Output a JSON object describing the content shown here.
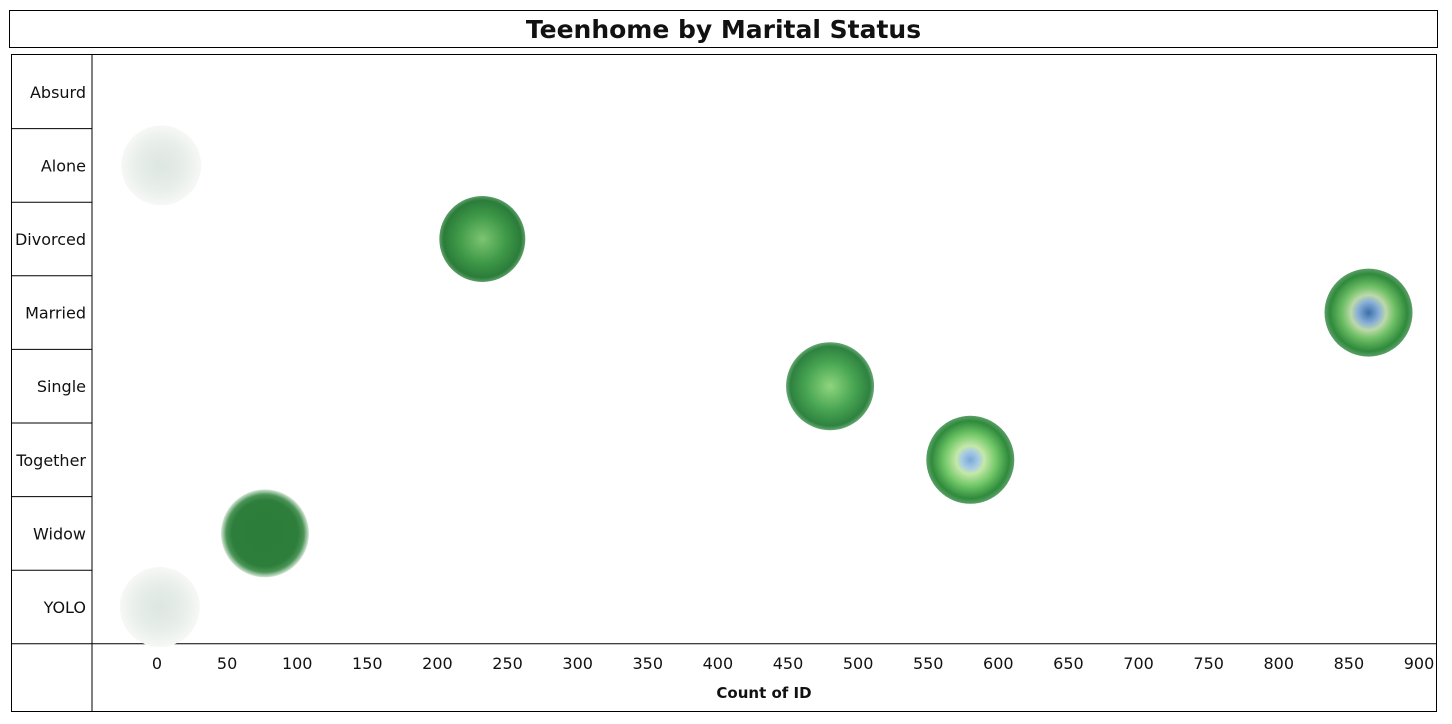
{
  "title": "Teenhome by Marital Status",
  "chart_data": {
    "type": "scatter",
    "title": "Teenhome by Marital Status",
    "xlabel": "Count of ID",
    "ylabel": "",
    "xlim": [
      -20,
      900
    ],
    "xticks": [
      0,
      50,
      100,
      150,
      200,
      250,
      300,
      350,
      400,
      450,
      500,
      550,
      600,
      650,
      700,
      750,
      800,
      850,
      900
    ],
    "categories": [
      "Absurd",
      "Alone",
      "Divorced",
      "Married",
      "Single",
      "Together",
      "Widow",
      "YOLO"
    ],
    "points": [
      {
        "category": "Alone",
        "x": 3,
        "style": "faint"
      },
      {
        "category": "Divorced",
        "x": 232,
        "style": "green"
      },
      {
        "category": "Married",
        "x": 864,
        "style": "green-blue"
      },
      {
        "category": "Single",
        "x": 480,
        "style": "green-light"
      },
      {
        "category": "Together",
        "x": 580,
        "style": "green-blue-small"
      },
      {
        "category": "Widow",
        "x": 77,
        "style": "dark-green"
      },
      {
        "category": "YOLO",
        "x": 2,
        "style": "faint"
      }
    ],
    "grid": false,
    "legend": "none"
  }
}
